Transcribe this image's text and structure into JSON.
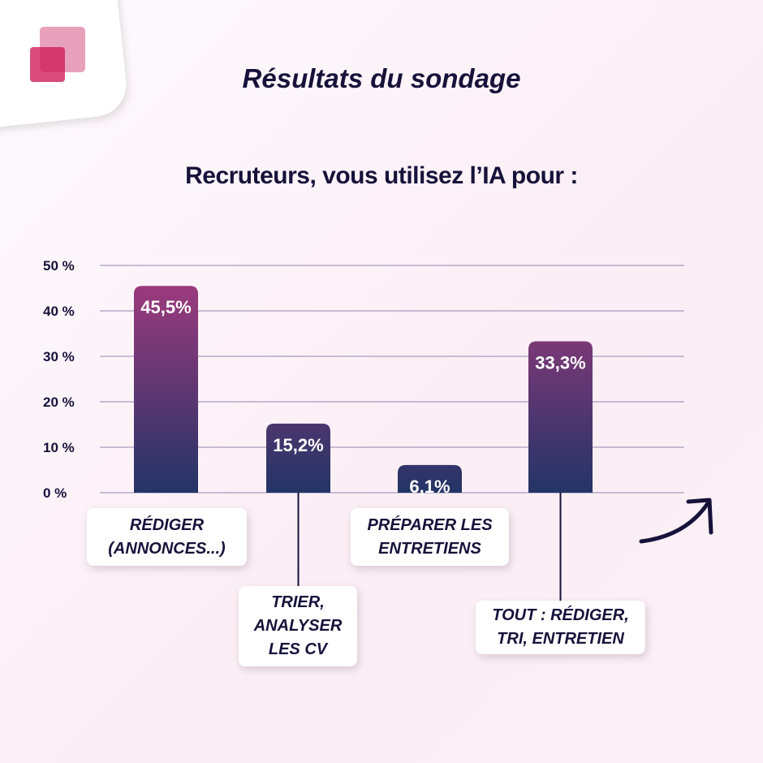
{
  "title": "Résultats du sondage",
  "chart_data": {
    "type": "bar",
    "title": "Recruteurs, vous utilisez l’IA pour :",
    "categories": [
      "RÉDIGER\n(ANNONCES...)",
      "TRIER,\nANALYSER\nLES CV",
      "PRÉPARER LES\nENTRETIENS",
      "TOUT : RÉDIGER,\nTRI, ENTRETIEN"
    ],
    "values": [
      45.5,
      15.2,
      6.1,
      33.3
    ],
    "data_labels": [
      "45,5%",
      "15,2%",
      "6,1%",
      "33,3%"
    ],
    "yticks": [
      "0 %",
      "10 %",
      "20 %",
      "30 %",
      "40 %",
      "50 %"
    ],
    "ylim": [
      0,
      50
    ],
    "grid": true,
    "colors": {
      "bar_top": "#9b3a7d",
      "bar_bottom": "#233466",
      "grid": "#a89bbd"
    }
  }
}
